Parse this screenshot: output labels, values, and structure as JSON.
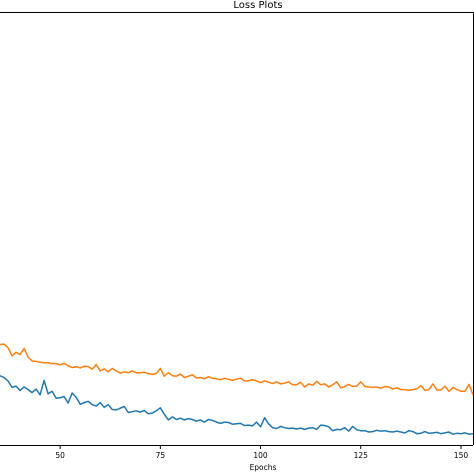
{
  "chart_data": {
    "type": "line",
    "title": "Loss Plots",
    "xlabel": "Epochs",
    "ylabel": "",
    "xlim": [
      35,
      153
    ],
    "ylim": [
      0,
      100
    ],
    "x_ticks": [
      50,
      75,
      100,
      125,
      150
    ],
    "x_tick_labels": [
      "50",
      "75",
      "100",
      "125",
      "150"
    ],
    "grid": false,
    "series": [
      {
        "color": "#1f77b4",
        "x": [
          35,
          36,
          37,
          38,
          39,
          40,
          41,
          42,
          43,
          44,
          45,
          46,
          47,
          48,
          49,
          50,
          51,
          52,
          53,
          54,
          55,
          56,
          57,
          58,
          59,
          60,
          61,
          62,
          63,
          64,
          65,
          66,
          67,
          68,
          69,
          70,
          71,
          72,
          73,
          74,
          75,
          76,
          77,
          78,
          79,
          80,
          81,
          82,
          83,
          84,
          85,
          86,
          87,
          88,
          89,
          90,
          91,
          92,
          93,
          94,
          95,
          96,
          97,
          98,
          99,
          100,
          101,
          102,
          103,
          104,
          105,
          106,
          107,
          108,
          109,
          110,
          111,
          112,
          113,
          114,
          115,
          116,
          117,
          118,
          119,
          120,
          121,
          122,
          123,
          124,
          125,
          126,
          127,
          128,
          129,
          130,
          131,
          132,
          133,
          134,
          135,
          136,
          137,
          138,
          139,
          140,
          141,
          142,
          143,
          144,
          145,
          146,
          147,
          148,
          149,
          150,
          151,
          152,
          153
        ],
        "y": [
          16.0,
          15.6,
          14.8,
          13.3,
          13.6,
          12.6,
          13.4,
          12.8,
          12.1,
          12.9,
          11.6,
          14.9,
          11.8,
          12.4,
          10.8,
          10.9,
          11.2,
          9.7,
          12.0,
          11.0,
          9.4,
          9.8,
          10.1,
          9.3,
          9.0,
          9.8,
          8.7,
          9.3,
          8.2,
          8.1,
          8.5,
          8.9,
          7.5,
          7.7,
          7.9,
          7.6,
          8.0,
          7.2,
          7.4,
          7.9,
          8.6,
          7.1,
          5.8,
          6.5,
          5.9,
          6.2,
          5.8,
          6.1,
          5.9,
          5.5,
          5.8,
          5.3,
          5.9,
          5.7,
          5.3,
          5.0,
          5.3,
          5.2,
          4.8,
          4.9,
          5.0,
          4.5,
          4.6,
          4.4,
          5.3,
          4.2,
          6.3,
          4.9,
          4.0,
          3.8,
          4.3,
          4.0,
          3.8,
          3.9,
          3.7,
          3.9,
          3.6,
          3.9,
          4.0,
          3.6,
          4.6,
          4.5,
          4.2,
          3.3,
          3.6,
          3.5,
          4.0,
          3.2,
          4.3,
          3.5,
          3.3,
          3.3,
          3.0,
          3.1,
          3.4,
          3.2,
          3.3,
          3.1,
          3.0,
          3.2,
          3.0,
          2.8,
          3.3,
          3.1,
          2.6,
          2.7,
          3.1,
          2.7,
          2.8,
          2.9,
          2.6,
          2.8,
          3.0,
          2.5,
          2.7,
          2.6,
          2.8,
          2.5,
          2.6
        ]
      },
      {
        "color": "#ff7f0e",
        "x": [
          35,
          36,
          37,
          38,
          39,
          40,
          41,
          42,
          43,
          44,
          45,
          46,
          47,
          48,
          49,
          50,
          51,
          52,
          53,
          54,
          55,
          56,
          57,
          58,
          59,
          60,
          61,
          62,
          63,
          64,
          65,
          66,
          67,
          68,
          69,
          70,
          71,
          72,
          73,
          74,
          75,
          76,
          77,
          78,
          79,
          80,
          81,
          82,
          83,
          84,
          85,
          86,
          87,
          88,
          89,
          90,
          91,
          92,
          93,
          94,
          95,
          96,
          97,
          98,
          99,
          100,
          101,
          102,
          103,
          104,
          105,
          106,
          107,
          108,
          109,
          110,
          111,
          112,
          113,
          114,
          115,
          116,
          117,
          118,
          119,
          120,
          121,
          122,
          123,
          124,
          125,
          126,
          127,
          128,
          129,
          130,
          131,
          132,
          133,
          134,
          135,
          136,
          137,
          138,
          139,
          140,
          141,
          142,
          143,
          144,
          145,
          146,
          147,
          148,
          149,
          150,
          151,
          152,
          153
        ],
        "y": [
          23.2,
          23.3,
          22.5,
          20.6,
          21.4,
          20.9,
          22.3,
          20.3,
          19.4,
          19.3,
          19.1,
          19.0,
          19.0,
          18.8,
          18.8,
          18.5,
          18.9,
          18.3,
          17.9,
          18.1,
          17.8,
          18.2,
          18.1,
          17.5,
          18.6,
          17.1,
          17.6,
          16.9,
          17.7,
          17.1,
          16.6,
          16.9,
          16.7,
          17.1,
          16.7,
          16.7,
          16.8,
          16.5,
          16.3,
          16.5,
          17.7,
          15.9,
          16.7,
          16.0,
          15.9,
          16.4,
          15.6,
          15.9,
          16.2,
          15.5,
          15.6,
          15.3,
          15.8,
          15.4,
          15.3,
          15.1,
          15.4,
          15.2,
          14.9,
          15.2,
          15.4,
          14.8,
          14.8,
          15.1,
          14.8,
          14.4,
          14.8,
          14.5,
          14.2,
          14.6,
          14.1,
          14.3,
          14.6,
          13.9,
          13.9,
          14.5,
          13.4,
          14.1,
          13.8,
          14.7,
          13.9,
          14.1,
          13.4,
          13.9,
          14.6,
          13.2,
          13.5,
          14.0,
          13.5,
          13.6,
          14.6,
          13.5,
          13.4,
          13.3,
          13.4,
          13.1,
          13.5,
          13.4,
          12.9,
          13.2,
          12.8,
          12.8,
          12.6,
          12.8,
          13.0,
          13.7,
          12.6,
          12.8,
          14.1,
          12.7,
          12.7,
          13.6,
          12.4,
          13.3,
          12.8,
          12.4,
          12.4,
          14.0,
          11.6
        ]
      }
    ]
  }
}
